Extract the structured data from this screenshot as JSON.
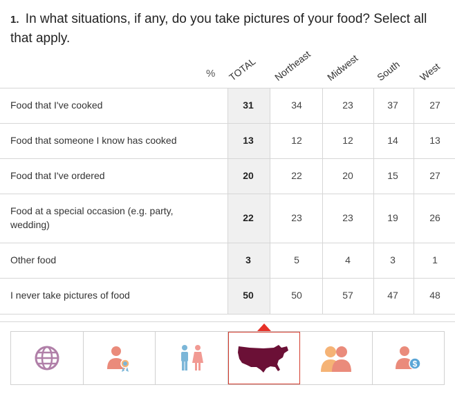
{
  "question": {
    "number": "1.",
    "text": "In what situations, if any, do you take pictures of your food? Select all that apply."
  },
  "unit_label": "%",
  "columns": [
    "TOTAL",
    "Northeast",
    "Midwest",
    "South",
    "West"
  ],
  "rows": [
    {
      "label": "Food that I've cooked",
      "values": [
        31,
        34,
        23,
        37,
        27
      ]
    },
    {
      "label": "Food that someone I know has cooked",
      "values": [
        13,
        12,
        12,
        14,
        13
      ]
    },
    {
      "label": "Food that I've ordered",
      "values": [
        20,
        22,
        20,
        15,
        27
      ]
    },
    {
      "label": "Food at a special occasion (e.g. party, wedding)",
      "values": [
        22,
        23,
        23,
        19,
        26
      ]
    },
    {
      "label": "Other food",
      "values": [
        3,
        5,
        4,
        3,
        1
      ]
    },
    {
      "label": "I never take pictures of food",
      "values": [
        50,
        50,
        57,
        47,
        48
      ]
    }
  ],
  "chart_data": {
    "type": "table",
    "title": "In what situations, if any, do you take pictures of your food? Select all that apply.",
    "unit": "%",
    "categories": [
      "Food that I've cooked",
      "Food that someone I know has cooked",
      "Food that I've ordered",
      "Food at a special occasion (e.g. party, wedding)",
      "Other food",
      "I never take pictures of food"
    ],
    "series": [
      {
        "name": "TOTAL",
        "values": [
          31,
          13,
          20,
          22,
          3,
          50
        ]
      },
      {
        "name": "Northeast",
        "values": [
          34,
          12,
          22,
          23,
          5,
          50
        ]
      },
      {
        "name": "Midwest",
        "values": [
          23,
          12,
          20,
          23,
          4,
          57
        ]
      },
      {
        "name": "South",
        "values": [
          37,
          14,
          15,
          19,
          3,
          47
        ]
      },
      {
        "name": "West",
        "values": [
          27,
          13,
          27,
          26,
          1,
          48
        ]
      }
    ]
  },
  "tabs": [
    {
      "icon": "globe-icon",
      "active": false
    },
    {
      "icon": "person-award-icon",
      "active": false
    },
    {
      "icon": "male-female-icon",
      "active": false
    },
    {
      "icon": "us-map-icon",
      "active": true
    },
    {
      "icon": "people-group-icon",
      "active": false
    },
    {
      "icon": "person-dollar-icon",
      "active": false
    }
  ],
  "colors": {
    "active_border": "#d33a2c",
    "caret": "#e63027",
    "map_fill": "#6b1036",
    "globe": "#b07fa8",
    "person_salmon": "#ea8b7b",
    "person_orange": "#f5b376",
    "male_blue": "#7bb6d8",
    "female_pink": "#f19a93",
    "dollar_blue": "#5aa5d6"
  }
}
